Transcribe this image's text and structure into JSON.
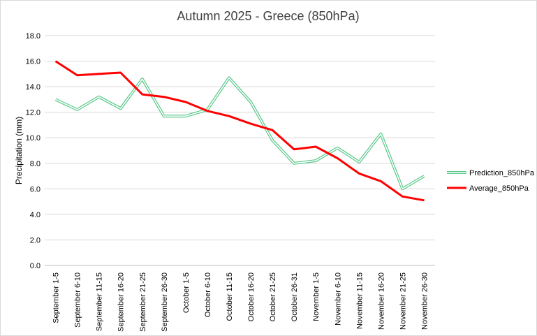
{
  "chart_data": {
    "type": "line",
    "title": "Autumn 2025 - Greece (850hPa)",
    "ylabel": "Precipitation (mm)",
    "xlabel": "",
    "ylim": [
      0,
      18
    ],
    "ytick_step": 2,
    "ytick_decimals": 1,
    "grid": true,
    "legend_position": "right",
    "categories": [
      "September 1-5",
      "September 6-10",
      "September 11-15",
      "September 16-20",
      "September 21-25",
      "September 26-30",
      "October 1-5",
      "October 6-10",
      "October 11-15",
      "October 16-20",
      "October 21-25",
      "October 26-31",
      "November 1-5",
      "November 6-10",
      "November 11-15",
      "November 16-20",
      "November 21-25",
      "November 26-30"
    ],
    "series": [
      {
        "name": "Prediction_850hPa",
        "color": "#59c88a",
        "style": "double-line",
        "values": [
          13.0,
          12.2,
          13.2,
          12.3,
          14.6,
          11.7,
          11.7,
          12.2,
          14.7,
          12.8,
          9.8,
          8.0,
          8.2,
          9.2,
          8.1,
          10.3,
          6.0,
          7.0
        ]
      },
      {
        "name": "Average_850hPa",
        "color": "#ff0000",
        "style": "solid",
        "values": [
          16.0,
          14.9,
          15.0,
          15.1,
          13.4,
          13.2,
          12.8,
          12.1,
          11.7,
          11.1,
          10.6,
          9.1,
          9.3,
          8.4,
          7.2,
          6.6,
          5.4,
          5.1
        ]
      }
    ]
  }
}
